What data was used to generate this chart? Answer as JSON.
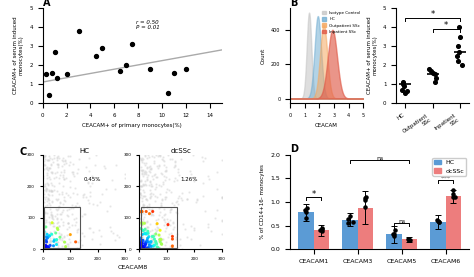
{
  "panel_A": {
    "scatter_x": [
      0.3,
      0.5,
      0.8,
      1.0,
      1.2,
      2.0,
      3.0,
      4.5,
      5.0,
      6.5,
      7.0,
      7.5,
      9.0,
      10.5,
      11.0,
      12.0
    ],
    "scatter_y": [
      1.5,
      0.4,
      1.6,
      2.7,
      1.3,
      1.5,
      3.8,
      2.5,
      2.9,
      1.7,
      2.0,
      3.1,
      1.8,
      0.5,
      1.6,
      1.8
    ],
    "fit_x": [
      0,
      15
    ],
    "fit_y": [
      1.1,
      2.8
    ],
    "annotation": "r = 0.50\nP = 0.01",
    "xlabel": "CEACAM+ of primary monocytes(%)",
    "ylabel": "CEACAM+ of serum induced\nmonocytes(%)",
    "xlim": [
      0,
      15
    ],
    "ylim": [
      0,
      5
    ],
    "line_color": "#aaaaaa"
  },
  "panel_B_flow": {
    "legend_labels": [
      "Isotype Control",
      "HC",
      "Outpatient SSc",
      "Inpatient SSc"
    ],
    "legend_colors": [
      "#c8c8c8",
      "#74afd3",
      "#f5a962",
      "#e05c4a"
    ],
    "xlabel": "CEACAM",
    "ylabel": "Count"
  },
  "panel_B_dot": {
    "groups": [
      "HC",
      "Outpatient\nSSc",
      "Inpatient\nSSc"
    ],
    "means": [
      1.0,
      1.5,
      2.7
    ],
    "dots": [
      [
        0.5,
        0.6,
        0.7,
        0.9,
        1.0,
        1.1
      ],
      [
        1.1,
        1.3,
        1.5,
        1.6,
        1.7,
        1.8
      ],
      [
        2.0,
        2.2,
        2.5,
        2.7,
        3.0,
        3.5,
        4.0
      ]
    ],
    "ylabel": "CEACAM+ of serum induced\nmonocytes(%)",
    "ylim": [
      0,
      5
    ],
    "sig_y1": 4.5,
    "sig_y2": 3.9
  },
  "panel_C": {
    "labels": [
      "HC",
      "dcSSc"
    ],
    "percentages": [
      "0.45%",
      "1.26%"
    ],
    "xlabel": "CEACAM8"
  },
  "panel_D": {
    "categories": [
      "CEACAM1",
      "CEACAM3",
      "CEACAM5",
      "CEACAM6"
    ],
    "HC_means": [
      0.78,
      0.63,
      0.32,
      0.58
    ],
    "HC_errors": [
      0.18,
      0.14,
      0.18,
      0.14
    ],
    "dcSSc_means": [
      0.4,
      0.88,
      0.21,
      1.12
    ],
    "dcSSc_errors": [
      0.12,
      0.35,
      0.06,
      0.13
    ],
    "HC_color": "#5b9bd5",
    "dcSSc_color": "#ed7d7d",
    "ylabel": "% of CD14+16- monocytes",
    "ylim": [
      0,
      2.0
    ],
    "yticks": [
      0.0,
      0.5,
      1.0,
      1.5,
      2.0
    ]
  }
}
